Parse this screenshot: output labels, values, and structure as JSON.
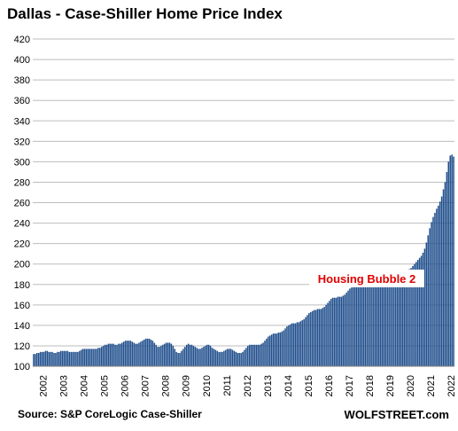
{
  "chart_data": {
    "type": "bar",
    "title": "Dallas - Case-Shiller Home Price Index",
    "source": "Source: S&P CoreLogic Case-Shiller",
    "brand": "WOLFSTREET.com",
    "annotation": "Housing Bubble 2",
    "ylim": [
      100,
      420
    ],
    "yticks": [
      100,
      120,
      140,
      160,
      180,
      200,
      220,
      240,
      260,
      280,
      300,
      320,
      340,
      360,
      380,
      400,
      420
    ],
    "xticks": [
      "2002",
      "2003",
      "2004",
      "2005",
      "2006",
      "2007",
      "2008",
      "2009",
      "2010",
      "2011",
      "2012",
      "2013",
      "2014",
      "2015",
      "2016",
      "2017",
      "2018",
      "2019",
      "2020",
      "2021",
      "2022"
    ],
    "grid": true,
    "bar_color": "#1f4e8c",
    "series": [
      {
        "year": "2002",
        "values": [
          112,
          112,
          113,
          113,
          114,
          114,
          114,
          115,
          115,
          114,
          114,
          114
        ]
      },
      {
        "year": "2003",
        "values": [
          113,
          113,
          114,
          114,
          115,
          115,
          115,
          115,
          115,
          114,
          114,
          114
        ]
      },
      {
        "year": "2004",
        "values": [
          114,
          114,
          114,
          115,
          116,
          117,
          117,
          117,
          117,
          117,
          117,
          117
        ]
      },
      {
        "year": "2005",
        "values": [
          117,
          117,
          118,
          118,
          119,
          120,
          121,
          121,
          122,
          122,
          122,
          122
        ]
      },
      {
        "year": "2006",
        "values": [
          121,
          121,
          122,
          122,
          123,
          124,
          125,
          125,
          125,
          125,
          124,
          123
        ]
      },
      {
        "year": "2007",
        "values": [
          122,
          122,
          123,
          124,
          125,
          126,
          127,
          127,
          127,
          126,
          125,
          123
        ]
      },
      {
        "year": "2008",
        "values": [
          121,
          119,
          119,
          120,
          121,
          122,
          123,
          123,
          123,
          122,
          120,
          117
        ]
      },
      {
        "year": "2009",
        "values": [
          114,
          113,
          113,
          115,
          117,
          119,
          121,
          122,
          121,
          121,
          120,
          119
        ]
      },
      {
        "year": "2010",
        "values": [
          118,
          117,
          117,
          118,
          119,
          120,
          121,
          121,
          120,
          118,
          117,
          116
        ]
      },
      {
        "year": "2011",
        "values": [
          115,
          114,
          114,
          114,
          115,
          116,
          117,
          117,
          117,
          116,
          115,
          114
        ]
      },
      {
        "year": "2012",
        "values": [
          113,
          113,
          113,
          114,
          116,
          118,
          120,
          121,
          121,
          121,
          121,
          121
        ]
      },
      {
        "year": "2013",
        "values": [
          121,
          121,
          122,
          123,
          125,
          127,
          129,
          130,
          131,
          132,
          132,
          132
        ]
      },
      {
        "year": "2014",
        "values": [
          133,
          133,
          134,
          135,
          137,
          139,
          140,
          141,
          142,
          142,
          142,
          143
        ]
      },
      {
        "year": "2015",
        "values": [
          143,
          144,
          145,
          146,
          148,
          150,
          152,
          153,
          154,
          155,
          155,
          156
        ]
      },
      {
        "year": "2016",
        "values": [
          156,
          156,
          157,
          158,
          160,
          162,
          164,
          166,
          167,
          167,
          167,
          168
        ]
      },
      {
        "year": "2017",
        "values": [
          168,
          168,
          169,
          170,
          172,
          174,
          176,
          177,
          178,
          178,
          178,
          178
        ]
      },
      {
        "year": "2018",
        "values": [
          178,
          178,
          179,
          180,
          182,
          183,
          184,
          184,
          184,
          184,
          184,
          184
        ]
      },
      {
        "year": "2019",
        "values": [
          184,
          184,
          185,
          186,
          187,
          188,
          189,
          190,
          190,
          190,
          190,
          191
        ]
      },
      {
        "year": "2020",
        "values": [
          191,
          191,
          192,
          193,
          194,
          195,
          196,
          198,
          200,
          202,
          204,
          206
        ]
      },
      {
        "year": "2021",
        "values": [
          208,
          211,
          215,
          221,
          228,
          235,
          241,
          246,
          250,
          254,
          257,
          261
        ]
      },
      {
        "year": "2022",
        "values": [
          266,
          273,
          280,
          290,
          300,
          306,
          307,
          305
        ]
      }
    ]
  }
}
